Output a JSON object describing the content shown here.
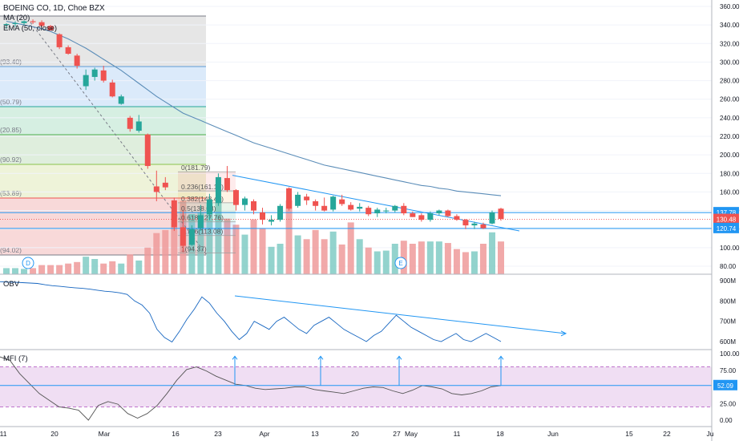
{
  "header": {
    "symbol_line": "BOEING CO, 1D, Choe BZX",
    "study_1": "MA (20)",
    "study_2": "EMA (50, close)"
  },
  "colors": {
    "up": "#26a69a",
    "down": "#ef5350",
    "volume_up": "#80cbc4",
    "volume_down": "#ef9a9a",
    "line_blue": "#2196f3",
    "ema": "#5b8db8",
    "last_price": "#ef5350",
    "mfi_band": "#e1bee7"
  },
  "chart_data": [
    {
      "type": "candlestick",
      "panel": "price",
      "y_axis_ticks": [
        "360.00",
        "340.00",
        "320.00",
        "300.00",
        "280.00",
        "260.00",
        "240.00",
        "220.00",
        "200.00",
        "180.00",
        "160.00",
        "140.00",
        "120.00",
        "100.00",
        "80.00"
      ],
      "ylim": [
        80,
        360
      ],
      "x_axis_ticks": [
        "11",
        "20",
        "Mar",
        "16",
        "23",
        "Apr",
        "13",
        "20",
        "27",
        "May",
        "11",
        "18",
        "Jun",
        "15",
        "22",
        "Ju"
      ],
      "candles": [
        {
          "o": 340,
          "h": 342,
          "l": 336,
          "c": 341
        },
        {
          "o": 341,
          "h": 344,
          "l": 338,
          "c": 342
        },
        {
          "o": 342,
          "h": 345,
          "l": 340,
          "c": 344
        },
        {
          "o": 344,
          "h": 346,
          "l": 341,
          "c": 343
        },
        {
          "o": 343,
          "h": 345,
          "l": 338,
          "c": 339
        },
        {
          "o": 339,
          "h": 340,
          "l": 334,
          "c": 334
        },
        {
          "o": 330,
          "h": 331,
          "l": 314,
          "c": 316
        },
        {
          "o": 316,
          "h": 318,
          "l": 308,
          "c": 309
        },
        {
          "o": 307,
          "h": 309,
          "l": 293,
          "c": 296
        },
        {
          "o": 274,
          "h": 292,
          "l": 270,
          "c": 286
        },
        {
          "o": 284,
          "h": 294,
          "l": 280,
          "c": 292
        },
        {
          "o": 291,
          "h": 296,
          "l": 278,
          "c": 280
        },
        {
          "o": 278,
          "h": 281,
          "l": 262,
          "c": 263
        },
        {
          "o": 255,
          "h": 265,
          "l": 254,
          "c": 263
        },
        {
          "o": 240,
          "h": 242,
          "l": 225,
          "c": 228
        },
        {
          "o": 226,
          "h": 243,
          "l": 224,
          "c": 236
        },
        {
          "o": 222,
          "h": 223,
          "l": 185,
          "c": 188
        },
        {
          "o": 166,
          "h": 183,
          "l": 150,
          "c": 160
        },
        {
          "o": 170,
          "h": 176,
          "l": 162,
          "c": 165
        },
        {
          "o": 151,
          "h": 154,
          "l": 118,
          "c": 122
        },
        {
          "o": 122,
          "h": 140,
          "l": 95,
          "c": 102
        },
        {
          "o": 103,
          "h": 124,
          "l": 102,
          "c": 120
        },
        {
          "o": 121,
          "h": 146,
          "l": 118,
          "c": 135
        },
        {
          "o": 136,
          "h": 158,
          "l": 130,
          "c": 152
        },
        {
          "o": 148,
          "h": 180,
          "l": 145,
          "c": 176
        },
        {
          "o": 175,
          "h": 188,
          "l": 160,
          "c": 162
        },
        {
          "o": 162,
          "h": 163,
          "l": 140,
          "c": 146
        },
        {
          "o": 146,
          "h": 155,
          "l": 140,
          "c": 153
        },
        {
          "o": 150,
          "h": 152,
          "l": 136,
          "c": 140
        },
        {
          "o": 138,
          "h": 143,
          "l": 125,
          "c": 130
        },
        {
          "o": 128,
          "h": 135,
          "l": 124,
          "c": 130
        },
        {
          "o": 130,
          "h": 147,
          "l": 128,
          "c": 145
        },
        {
          "o": 164,
          "h": 165,
          "l": 140,
          "c": 142
        },
        {
          "o": 145,
          "h": 160,
          "l": 143,
          "c": 157
        },
        {
          "o": 155,
          "h": 158,
          "l": 146,
          "c": 151
        },
        {
          "o": 150,
          "h": 152,
          "l": 140,
          "c": 145
        },
        {
          "o": 145,
          "h": 154,
          "l": 139,
          "c": 140
        },
        {
          "o": 141,
          "h": 156,
          "l": 139,
          "c": 155
        },
        {
          "o": 152,
          "h": 157,
          "l": 145,
          "c": 147
        },
        {
          "o": 146,
          "h": 149,
          "l": 140,
          "c": 141
        },
        {
          "o": 142,
          "h": 148,
          "l": 139,
          "c": 144
        },
        {
          "o": 143,
          "h": 145,
          "l": 134,
          "c": 136
        },
        {
          "o": 137,
          "h": 143,
          "l": 133,
          "c": 141
        },
        {
          "o": 140,
          "h": 143,
          "l": 137,
          "c": 140
        },
        {
          "o": 140,
          "h": 146,
          "l": 138,
          "c": 145
        },
        {
          "o": 145,
          "h": 148,
          "l": 135,
          "c": 137
        },
        {
          "o": 137,
          "h": 139,
          "l": 133,
          "c": 133
        },
        {
          "o": 135,
          "h": 137,
          "l": 128,
          "c": 130
        },
        {
          "o": 130,
          "h": 139,
          "l": 128,
          "c": 137
        },
        {
          "o": 137,
          "h": 141,
          "l": 135,
          "c": 140
        },
        {
          "o": 140,
          "h": 141,
          "l": 133,
          "c": 134
        },
        {
          "o": 134,
          "h": 136,
          "l": 129,
          "c": 130
        },
        {
          "o": 130,
          "h": 131,
          "l": 120,
          "c": 124
        },
        {
          "o": 124,
          "h": 128,
          "l": 120,
          "c": 126
        },
        {
          "o": 125,
          "h": 127,
          "l": 120,
          "c": 121
        },
        {
          "o": 126,
          "h": 140,
          "l": 125,
          "c": 138
        },
        {
          "o": 142,
          "h": 143,
          "l": 129,
          "c": 131
        }
      ],
      "volume_relative": [
        0.08,
        0.08,
        0.07,
        0.08,
        0.12,
        0.12,
        0.12,
        0.14,
        0.16,
        0.23,
        0.2,
        0.14,
        0.17,
        0.14,
        0.26,
        0.18,
        0.35,
        0.54,
        0.58,
        0.83,
        0.96,
        0.79,
        0.81,
        0.94,
        1.0,
        0.73,
        0.65,
        0.52,
        0.72,
        0.6,
        0.36,
        0.4,
        0.97,
        0.51,
        0.46,
        0.58,
        0.46,
        0.56,
        0.39,
        0.68,
        0.46,
        0.35,
        0.3,
        0.31,
        0.4,
        0.44,
        0.4,
        0.43,
        0.43,
        0.43,
        0.41,
        0.33,
        0.29,
        0.3,
        0.4,
        0.55,
        0.43
      ],
      "ema_50": [
        344,
        342,
        340,
        338,
        336,
        333,
        329,
        325,
        320,
        315,
        309,
        303,
        297,
        291,
        284,
        277,
        270,
        263,
        257,
        251,
        245,
        241,
        237,
        233,
        229,
        225,
        221,
        217,
        213,
        210,
        207,
        204,
        201,
        198,
        195,
        192,
        189,
        187,
        185,
        183,
        181,
        179,
        177,
        175,
        173,
        171,
        169,
        167,
        166,
        164,
        163,
        161,
        160,
        159,
        158,
        157,
        156
      ],
      "fibonacci_levels": [
        {
          "ratio": "0",
          "value": "181.79",
          "label": "0(181.79)"
        },
        {
          "ratio": "0.236",
          "value": "161.16",
          "label": "0.236(161.16)"
        },
        {
          "ratio": "0.382",
          "value": "148.40",
          "label": "0.382(148.40)"
        },
        {
          "ratio": "0.5",
          "value": "138.08",
          "label": "0.5(138.08)"
        },
        {
          "ratio": "0.618",
          "value": "127.76",
          "label": "0.618(127.76)"
        },
        {
          "ratio": "0.786",
          "value": "113.08",
          "label": "0.786(113.08)"
        },
        {
          "ratio": "1",
          "value": "94.37",
          "label": "1(94.37)"
        }
      ],
      "left_fib_labels": [
        "(93.40)",
        "(50.79)",
        "(20.85)",
        "(90.92)",
        "(53.89)",
        "(94.02)"
      ],
      "horizontal_levels": [
        137.78,
        120.74
      ],
      "price_badges": [
        {
          "text": "137.78",
          "kind": "level"
        },
        {
          "text": "130.48",
          "kind": "last"
        },
        {
          "text": "120.74",
          "kind": "level"
        }
      ],
      "event_markers": [
        {
          "text": "D"
        },
        {
          "text": "E"
        }
      ]
    },
    {
      "type": "line",
      "panel": "OBV",
      "name": "OBV",
      "y_axis_ticks": [
        "900M",
        "800M",
        "700M",
        "600M"
      ],
      "ylim": [
        580,
        900
      ],
      "values": [
        895,
        893,
        892,
        890,
        888,
        886,
        880,
        875,
        872,
        868,
        865,
        862,
        858,
        853,
        848,
        845,
        840,
        832,
        800,
        780,
        740,
        660,
        620,
        598,
        650,
        710,
        760,
        820,
        790,
        740,
        700,
        650,
        610,
        640,
        700,
        680,
        660,
        700,
        720,
        690,
        660,
        640,
        680,
        700,
        720,
        690,
        660,
        640,
        620,
        600,
        630,
        650,
        690,
        730,
        700,
        670,
        650,
        630,
        610,
        600,
        620,
        640,
        610,
        600,
        620,
        640,
        620,
        600
      ]
    },
    {
      "type": "line",
      "panel": "MFI",
      "name": "MFI (7)",
      "y_axis_ticks": [
        "100.00",
        "75.00",
        "50.00",
        "25.00",
        "0.00"
      ],
      "ylim": [
        0,
        100
      ],
      "band": [
        20,
        80
      ],
      "current_value": "52.09",
      "values": [
        95,
        90,
        70,
        55,
        40,
        30,
        20,
        18,
        15,
        0,
        22,
        28,
        24,
        10,
        3,
        10,
        22,
        40,
        60,
        76,
        80,
        74,
        66,
        60,
        54,
        52,
        48,
        46,
        47,
        48,
        50,
        50,
        46,
        44,
        42,
        40,
        44,
        48,
        50,
        49,
        44,
        40,
        45,
        52,
        50,
        47,
        40,
        38,
        40,
        44,
        50,
        52
      ]
    }
  ]
}
